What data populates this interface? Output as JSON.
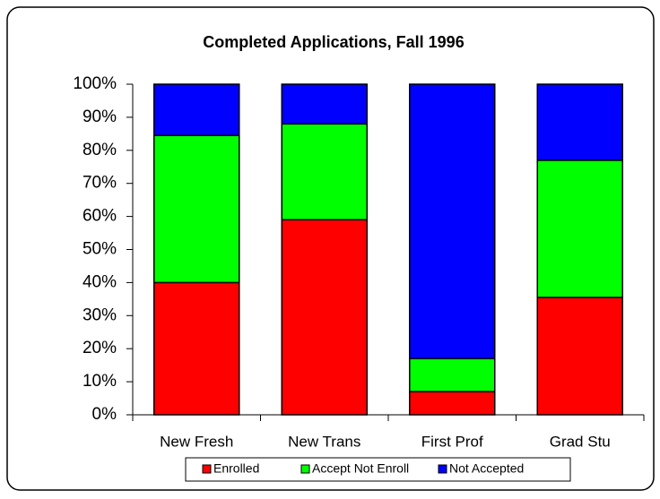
{
  "chart_data": {
    "type": "stacked_bar",
    "title": "Completed Applications, Fall 1996",
    "categories": [
      "New Fresh",
      "New Trans",
      "First Prof",
      "Grad Stu"
    ],
    "series": [
      {
        "name": "Enrolled",
        "color": "#ff0000",
        "values": [
          40,
          59,
          7,
          35.5
        ]
      },
      {
        "name": "Accept Not Enroll",
        "color": "#00ff00",
        "values": [
          44.5,
          29,
          10,
          41.5
        ]
      },
      {
        "name": "Not Accepted",
        "color": "#0000ff",
        "values": [
          15.5,
          12,
          83,
          23
        ]
      }
    ],
    "ylim": [
      0,
      100
    ],
    "yticks": [
      {
        "value": 0,
        "label": "0%"
      },
      {
        "value": 10,
        "label": "10%"
      },
      {
        "value": 20,
        "label": "20%"
      },
      {
        "value": 30,
        "label": "30%"
      },
      {
        "value": 40,
        "label": "40%"
      },
      {
        "value": 50,
        "label": "50%"
      },
      {
        "value": 60,
        "label": "60%"
      },
      {
        "value": 70,
        "label": "70%"
      },
      {
        "value": 80,
        "label": "80%"
      },
      {
        "value": 90,
        "label": "90%"
      },
      {
        "value": 100,
        "label": "100%"
      }
    ],
    "grid": false,
    "legend": "bottom"
  }
}
